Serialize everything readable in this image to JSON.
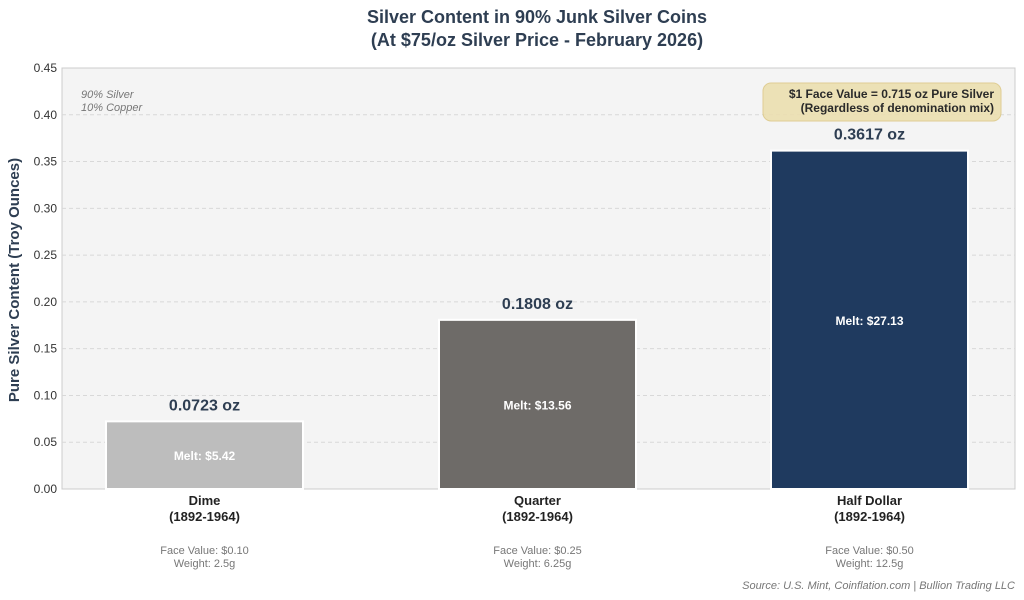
{
  "chart_data": {
    "type": "bar",
    "title": "Silver Content in 90% Junk Silver Coins",
    "subtitle": "(At $75/oz Silver Price - February 2026)",
    "xlabel": "",
    "ylabel": "Pure Silver Content (Troy Ounces)",
    "ylim": [
      0,
      0.45
    ],
    "yticks": [
      "0.00",
      "0.05",
      "0.10",
      "0.15",
      "0.20",
      "0.25",
      "0.30",
      "0.35",
      "0.40",
      "0.45"
    ],
    "grid": true,
    "categories": [
      "Dime",
      "Quarter",
      "Half Dollar"
    ],
    "years": [
      "(1892-1964)",
      "(1892-1964)",
      "(1892-1964)"
    ],
    "values": [
      0.0723,
      0.1808,
      0.3617
    ],
    "value_labels": [
      "0.0723 oz",
      "0.1808 oz",
      "0.3617 oz"
    ],
    "melt_labels": [
      "Melt: $5.42",
      "Melt: $13.56",
      "Melt: $27.13"
    ],
    "face_values": [
      "Face Value: $0.10",
      "Face Value: $0.25",
      "Face Value: $0.50"
    ],
    "weights": [
      "Weight: 2.5g",
      "Weight: 6.25g",
      "Weight: 12.5g"
    ],
    "colors": [
      "#bdbdbd",
      "#6e6b68",
      "#1f3a5f"
    ],
    "annotation_composition": [
      "90% Silver",
      "10% Copper"
    ],
    "annotation_box": [
      "$1 Face Value = 0.715 oz Pure Silver",
      "(Regardless of denomination mix)"
    ],
    "source": "Source: U.S. Mint, Coinflation.com | Bullion Trading LLC"
  }
}
